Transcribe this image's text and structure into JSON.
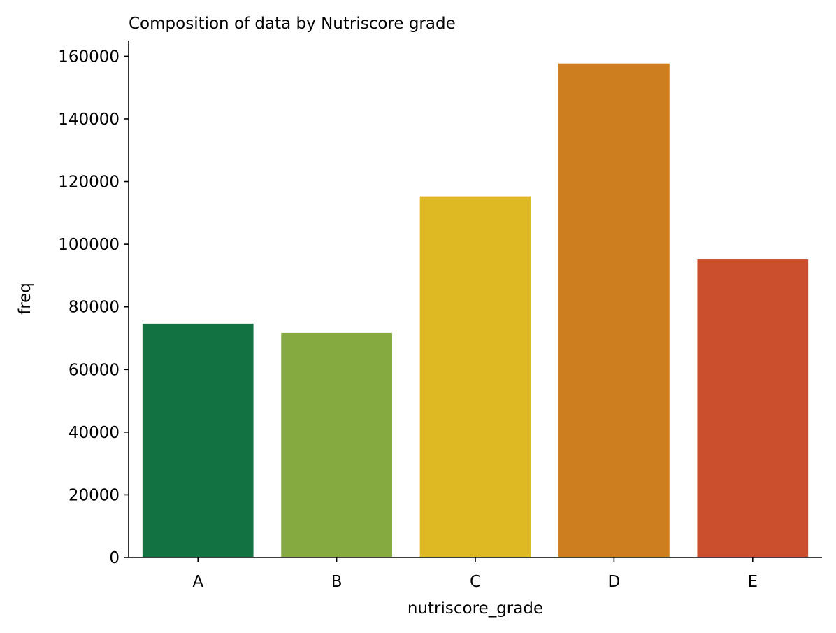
{
  "chart_data": {
    "type": "bar",
    "title": "Composition of data by Nutriscore grade",
    "xlabel": "nutriscore_grade",
    "ylabel": "freq",
    "categories": [
      "A",
      "B",
      "C",
      "D",
      "E"
    ],
    "values": [
      74600,
      71700,
      115300,
      157700,
      95100
    ],
    "colors": [
      "#137242",
      "#84aa40",
      "#dfb923",
      "#cd7f1f",
      "#cb4f2d"
    ],
    "ylim": [
      0,
      165000
    ],
    "yticks": [
      0,
      20000,
      40000,
      60000,
      80000,
      100000,
      120000,
      140000,
      160000
    ],
    "grid": false,
    "legend": null
  }
}
